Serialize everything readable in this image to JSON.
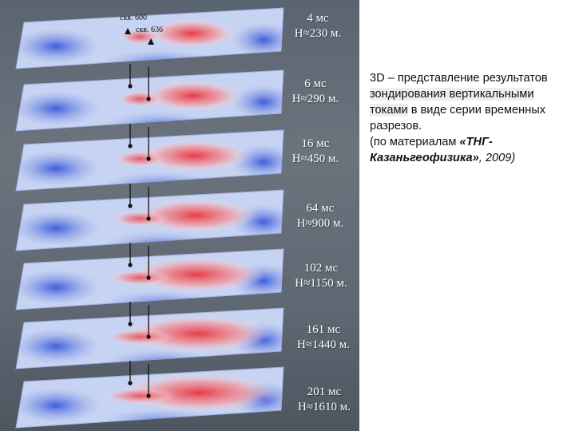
{
  "figure": {
    "wells": [
      {
        "label": "скв. 600"
      },
      {
        "label": "скв. 636"
      }
    ],
    "slices": [
      {
        "time": "4 мс",
        "depth": "Н≈230 м."
      },
      {
        "time": "6 мс",
        "depth": "Н≈290 м."
      },
      {
        "time": "16 мс",
        "depth": "Н≈450 м."
      },
      {
        "time": "64 мс",
        "depth": "Н≈900 м."
      },
      {
        "time": "102 мс",
        "depth": "Н≈1150 м."
      },
      {
        "time": "161 мс",
        "depth": "Н≈1440 м."
      },
      {
        "time": "201 мс",
        "depth": "Н≈1610 м."
      }
    ],
    "colors": {
      "low": "#2f4fd8",
      "mid": "#e6ecf8",
      "high": "#e8343c"
    }
  },
  "caption": {
    "part1": "3D – представление результатов ",
    "part2": "зондирования вертикальными токами",
    "part3": " в виде серии временных разрезов.",
    "part4": "(по материалам ",
    "part5": "«ТНГ-Казаньгеофизика»",
    "part6": ", 2009)"
  }
}
